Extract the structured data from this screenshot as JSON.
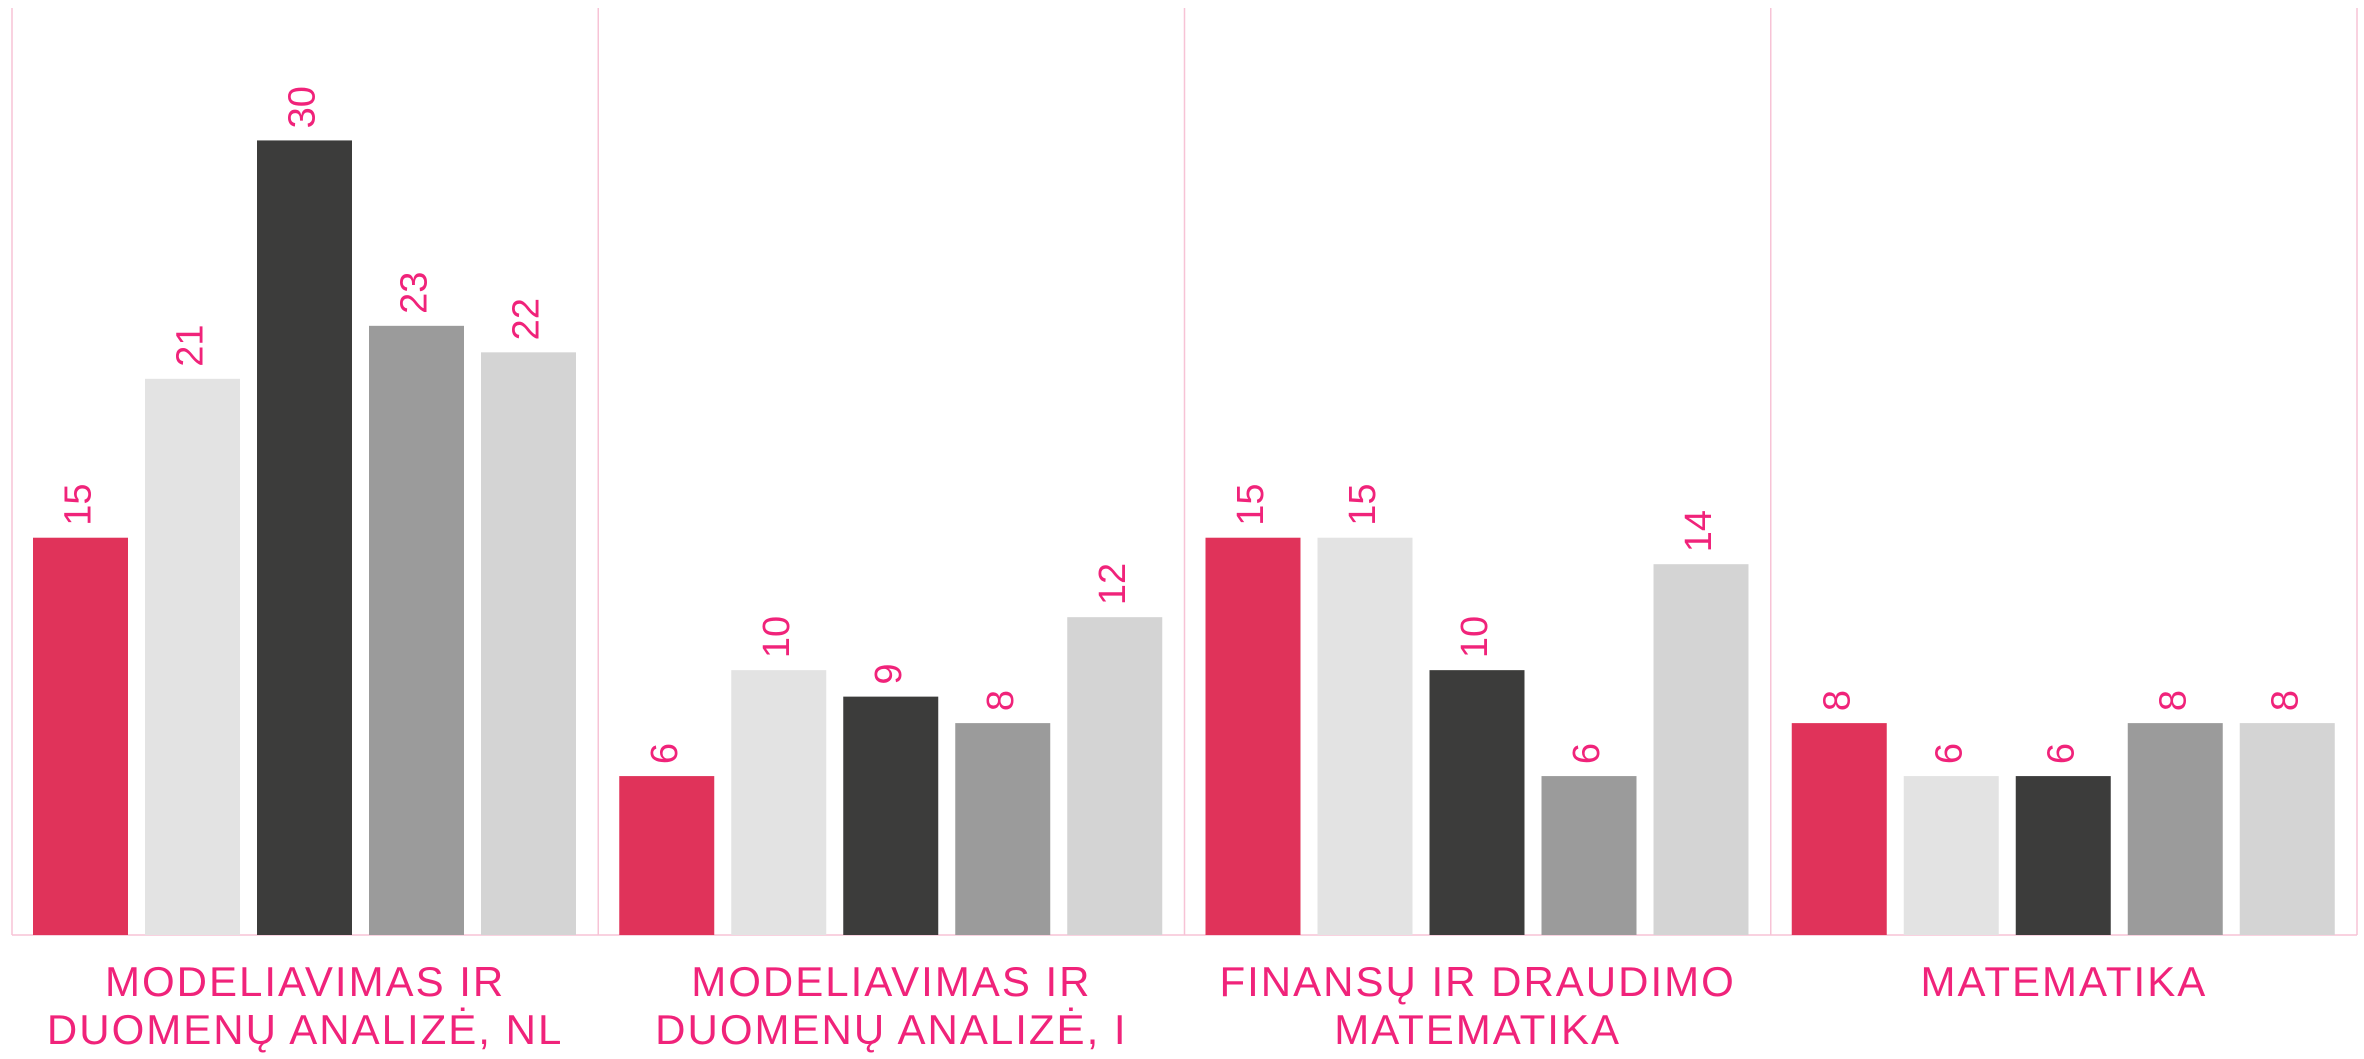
{
  "chart_data": {
    "type": "bar",
    "categories": [
      "MODELIAVIMAS IR DUOMENŲ ANALIZĖ, NL",
      "MODELIAVIMAS IR DUOMENŲ ANALIZĖ, I",
      "FINANSŲ IR DRAUDIMO MATEMATIKA",
      "MATEMATIKA"
    ],
    "series": [
      {
        "color": "#e0335a",
        "values": [
          15,
          6,
          15,
          8
        ]
      },
      {
        "color": "#e3e3e3",
        "values": [
          21,
          10,
          15,
          6
        ]
      },
      {
        "color": "#3c3c3b",
        "values": [
          30,
          9,
          10,
          6
        ]
      },
      {
        "color": "#9b9b9b",
        "values": [
          23,
          8,
          6,
          8
        ]
      },
      {
        "color": "#d4d4d4",
        "values": [
          22,
          12,
          14,
          8
        ]
      }
    ],
    "ylim": [
      0,
      35
    ]
  }
}
